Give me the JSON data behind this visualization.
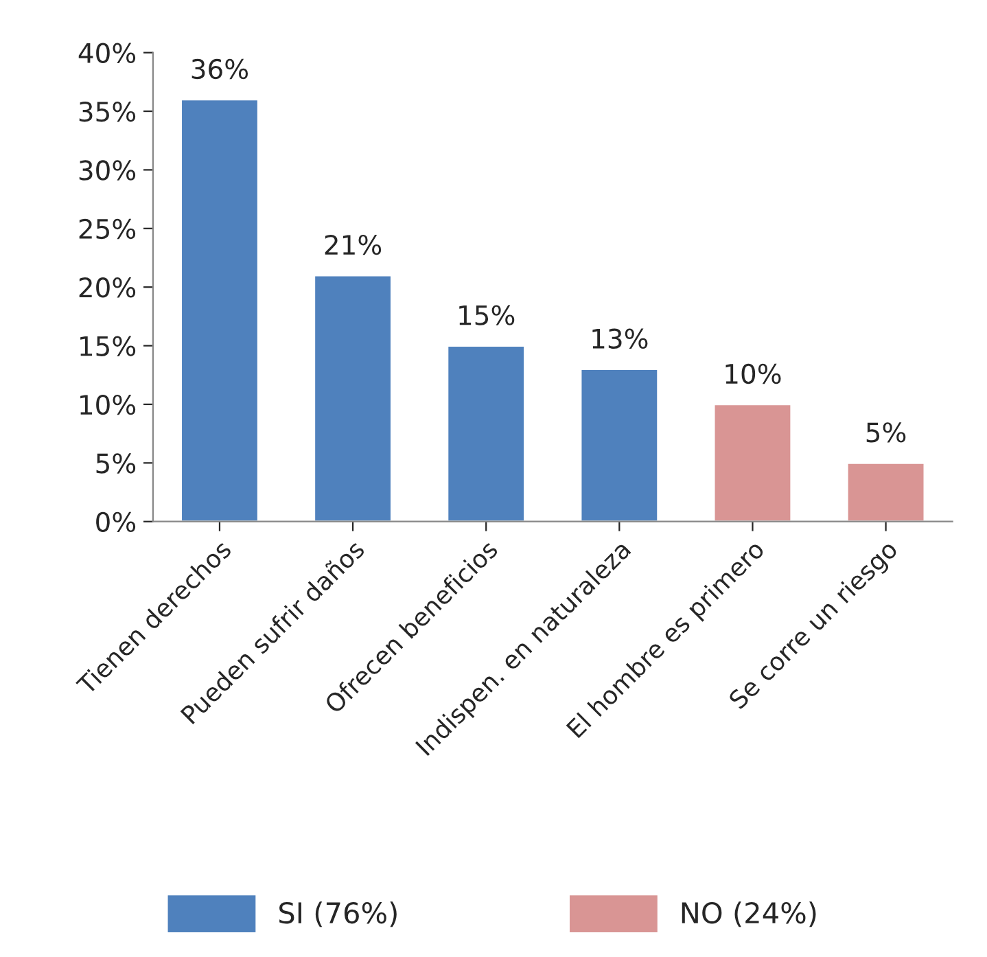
{
  "chart_data": {
    "type": "bar",
    "categories": [
      "Tienen derechos",
      "Pueden sufrir daños",
      "Ofrecen beneficios",
      "Indispen. en naturaleza",
      "El hombre es primero",
      "Se corre un riesgo"
    ],
    "series": [
      {
        "name": "SI (76%)",
        "color": "#4f81bd",
        "values": [
          36,
          21,
          15,
          13,
          null,
          null
        ],
        "value_labels": [
          "36%",
          "21%",
          "15%",
          "13%",
          null,
          null
        ]
      },
      {
        "name": "NO (24%)",
        "color": "#d99594",
        "values": [
          null,
          null,
          null,
          null,
          10,
          5
        ],
        "value_labels": [
          null,
          null,
          null,
          null,
          "10%",
          "5%"
        ]
      }
    ],
    "ylim": [
      0,
      40
    ],
    "yticks": [
      {
        "value": 0,
        "label": "0%"
      },
      {
        "value": 5,
        "label": "5%"
      },
      {
        "value": 10,
        "label": "10%"
      },
      {
        "value": 15,
        "label": "15%"
      },
      {
        "value": 20,
        "label": "20%"
      },
      {
        "value": 25,
        "label": "25%"
      },
      {
        "value": 30,
        "label": "30%"
      },
      {
        "value": 35,
        "label": "35%"
      },
      {
        "value": 40,
        "label": "40%"
      }
    ],
    "grid": false,
    "legend": "bottom"
  }
}
